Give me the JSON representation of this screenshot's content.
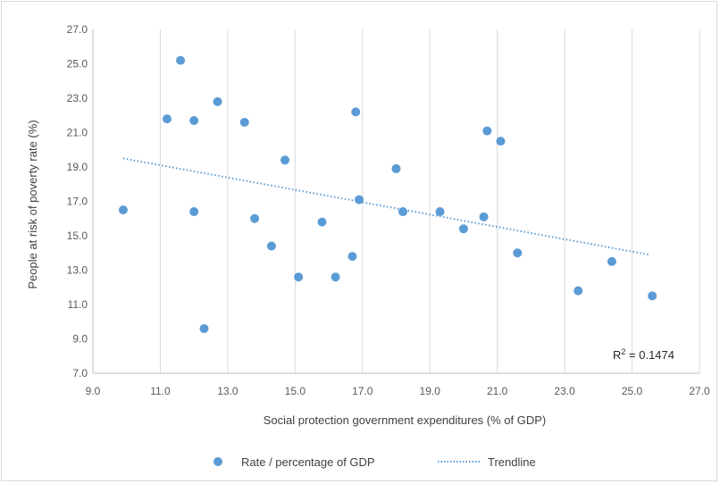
{
  "chart_data": {
    "type": "scatter",
    "title": "",
    "xlabel": "Social protection government expenditures (% of GDP)",
    "ylabel": "People at risk of poverty rate (%)",
    "xlim": [
      9.0,
      27.0
    ],
    "ylim": [
      7.0,
      27.0
    ],
    "xticks": [
      "9.0",
      "11.0",
      "13.0",
      "15.0",
      "17.0",
      "19.0",
      "21.0",
      "23.0",
      "25.0",
      "27.0"
    ],
    "yticks": [
      "7.0",
      "9.0",
      "11.0",
      "13.0",
      "15.0",
      "17.0",
      "19.0",
      "21.0",
      "23.0",
      "25.0",
      "27.0"
    ],
    "grid": "vertical",
    "legend_position": "bottom",
    "series": [
      {
        "name": "Rate / percentage of GDP",
        "color": "#5b9bd5",
        "marker": "circle",
        "points": [
          {
            "x": 9.9,
            "y": 16.5
          },
          {
            "x": 11.2,
            "y": 21.8
          },
          {
            "x": 11.6,
            "y": 25.2
          },
          {
            "x": 12.0,
            "y": 21.7
          },
          {
            "x": 12.0,
            "y": 16.4
          },
          {
            "x": 12.3,
            "y": 9.6
          },
          {
            "x": 12.7,
            "y": 22.8
          },
          {
            "x": 13.5,
            "y": 21.6
          },
          {
            "x": 13.8,
            "y": 16.0
          },
          {
            "x": 14.3,
            "y": 14.4
          },
          {
            "x": 14.7,
            "y": 19.4
          },
          {
            "x": 15.1,
            "y": 12.6
          },
          {
            "x": 15.8,
            "y": 15.8
          },
          {
            "x": 16.2,
            "y": 12.6
          },
          {
            "x": 16.7,
            "y": 13.8
          },
          {
            "x": 16.8,
            "y": 22.2
          },
          {
            "x": 16.9,
            "y": 17.1
          },
          {
            "x": 18.0,
            "y": 18.9
          },
          {
            "x": 18.2,
            "y": 16.4
          },
          {
            "x": 19.3,
            "y": 16.4
          },
          {
            "x": 20.0,
            "y": 15.4
          },
          {
            "x": 20.6,
            "y": 16.1
          },
          {
            "x": 20.7,
            "y": 21.1
          },
          {
            "x": 21.1,
            "y": 20.5
          },
          {
            "x": 21.6,
            "y": 14.0
          },
          {
            "x": 23.4,
            "y": 11.8
          },
          {
            "x": 24.4,
            "y": 13.5
          },
          {
            "x": 25.6,
            "y": 11.5
          }
        ]
      },
      {
        "name": "Trendline",
        "type": "linear-trendline",
        "color": "#5b9bd5",
        "style": "dotted",
        "points": [
          {
            "x": 9.9,
            "y": 19.5
          },
          {
            "x": 25.5,
            "y": 13.9
          }
        ]
      }
    ],
    "annotations": [
      {
        "text_prefix": "R",
        "superscript": "2",
        "text_suffix": " = 0.1474",
        "position": "bottom-right"
      }
    ]
  }
}
